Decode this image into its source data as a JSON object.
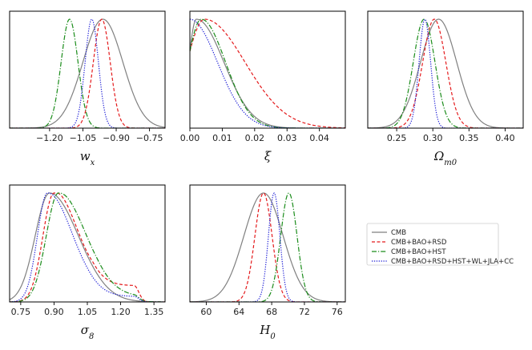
{
  "chart_data": [
    {
      "type": "line",
      "xlabel": "w_x",
      "xlim": [
        -1.38,
        -0.68
      ],
      "xticks": [
        -1.2,
        -1.05,
        -0.9,
        -0.75
      ],
      "tick_labels": [
        "−1.20",
        "−1.05",
        "−0.90",
        "−0.75"
      ],
      "series": [
        {
          "name": "CMB",
          "kind": "gauss",
          "peak": -0.96,
          "sigma": 0.09
        },
        {
          "name": "CMB+BAO+RSD",
          "kind": "gauss",
          "peak": -0.965,
          "sigma": 0.038
        },
        {
          "name": "CMB+BAO+HST",
          "kind": "gauss",
          "peak": -1.11,
          "sigma": 0.038
        },
        {
          "name": "CMB+BAO+RSD+HST+WL+JLA+CC",
          "kind": "gauss",
          "peak": -1.01,
          "sigma": 0.03
        }
      ]
    },
    {
      "type": "line",
      "xlabel": "ξ",
      "xlim": [
        0.0,
        0.048
      ],
      "xticks": [
        0.0,
        0.01,
        0.02,
        0.03,
        0.04
      ],
      "tick_labels": [
        "0.00",
        "0.01",
        "0.02",
        "0.03",
        "0.04"
      ],
      "series": [
        {
          "name": "CMB",
          "kind": "halfgauss",
          "peak": 0.002,
          "sigma": 0.0085
        },
        {
          "name": "CMB+BAO+RSD",
          "kind": "halfgauss",
          "peak": 0.0045,
          "sigma": 0.0125
        },
        {
          "name": "CMB+BAO+HST",
          "kind": "halfgauss",
          "peak": 0.0035,
          "sigma": 0.0075
        },
        {
          "name": "CMB+BAO+RSD+HST+WL+JLA+CC",
          "kind": "halfgauss",
          "peak": 0.0,
          "sigma": 0.0085
        }
      ]
    },
    {
      "type": "line",
      "xlabel": "Ω_m0",
      "xlim": [
        0.21,
        0.425
      ],
      "xticks": [
        0.25,
        0.3,
        0.35,
        0.4
      ],
      "tick_labels": [
        "0.25",
        "0.30",
        "0.35",
        "0.40"
      ],
      "series": [
        {
          "name": "CMB",
          "kind": "gauss",
          "peak": 0.308,
          "sigma": 0.025
        },
        {
          "name": "CMB+BAO+RSD",
          "kind": "gauss",
          "peak": 0.302,
          "sigma": 0.016
        },
        {
          "name": "CMB+BAO+HST",
          "kind": "gauss",
          "peak": 0.288,
          "sigma": 0.015
        },
        {
          "name": "CMB+BAO+RSD+HST+WL+JLA+CC",
          "kind": "gauss",
          "peak": 0.289,
          "sigma": 0.008
        }
      ]
    },
    {
      "type": "line",
      "xlabel": "σ_8",
      "xlim": [
        0.7,
        1.4
      ],
      "xticks": [
        0.75,
        0.9,
        1.05,
        1.2,
        1.35
      ],
      "tick_labels": [
        "0.75",
        "0.90",
        "1.05",
        "1.20",
        "1.35"
      ],
      "series": [
        {
          "name": "CMB",
          "kind": "skew",
          "peak": 0.88,
          "sigmaL": 0.065,
          "sigmaR": 0.13,
          "tail": 0.0
        },
        {
          "name": "CMB+BAO+RSD",
          "kind": "skew",
          "peak": 0.9,
          "sigmaL": 0.05,
          "sigmaR": 0.1,
          "tail": 0.15
        },
        {
          "name": "CMB+BAO+HST",
          "kind": "skew",
          "peak": 0.92,
          "sigmaL": 0.055,
          "sigmaR": 0.12,
          "tail": 0.05
        },
        {
          "name": "CMB+BAO+RSD+HST+WL+JLA+CC",
          "kind": "skew",
          "peak": 0.87,
          "sigmaL": 0.045,
          "sigmaR": 0.11,
          "tail": 0.05
        }
      ]
    },
    {
      "type": "line",
      "xlabel": "H_0",
      "xlim": [
        58.0,
        77.0
      ],
      "xticks": [
        60,
        64,
        68,
        72,
        76
      ],
      "tick_labels": [
        "60",
        "64",
        "68",
        "72",
        "76"
      ],
      "series": [
        {
          "name": "CMB",
          "kind": "gauss",
          "peak": 67.0,
          "sigma": 2.4
        },
        {
          "name": "CMB+BAO+RSD",
          "kind": "gauss",
          "peak": 67.0,
          "sigma": 1.05
        },
        {
          "name": "CMB+BAO+HST",
          "kind": "gauss",
          "peak": 70.1,
          "sigma": 1.0
        },
        {
          "name": "CMB+BAO+RSD+HST+WL+JLA+CC",
          "kind": "gauss",
          "peak": 68.3,
          "sigma": 0.7
        }
      ]
    }
  ],
  "legend": {
    "entries": [
      "CMB",
      "CMB+BAO+RSD",
      "CMB+BAO+HST",
      "CMB+BAO+RSD+HST+WL+JLA+CC"
    ],
    "placement": "right"
  },
  "styles": [
    {
      "color": "#808080",
      "dash": ""
    },
    {
      "color": "#e41a1c",
      "dash": "4,2.5"
    },
    {
      "color": "#1a8c1a",
      "dash": "6,2,1.2,2"
    },
    {
      "color": "#1f1fd6",
      "dash": "1.3,1.6"
    }
  ]
}
